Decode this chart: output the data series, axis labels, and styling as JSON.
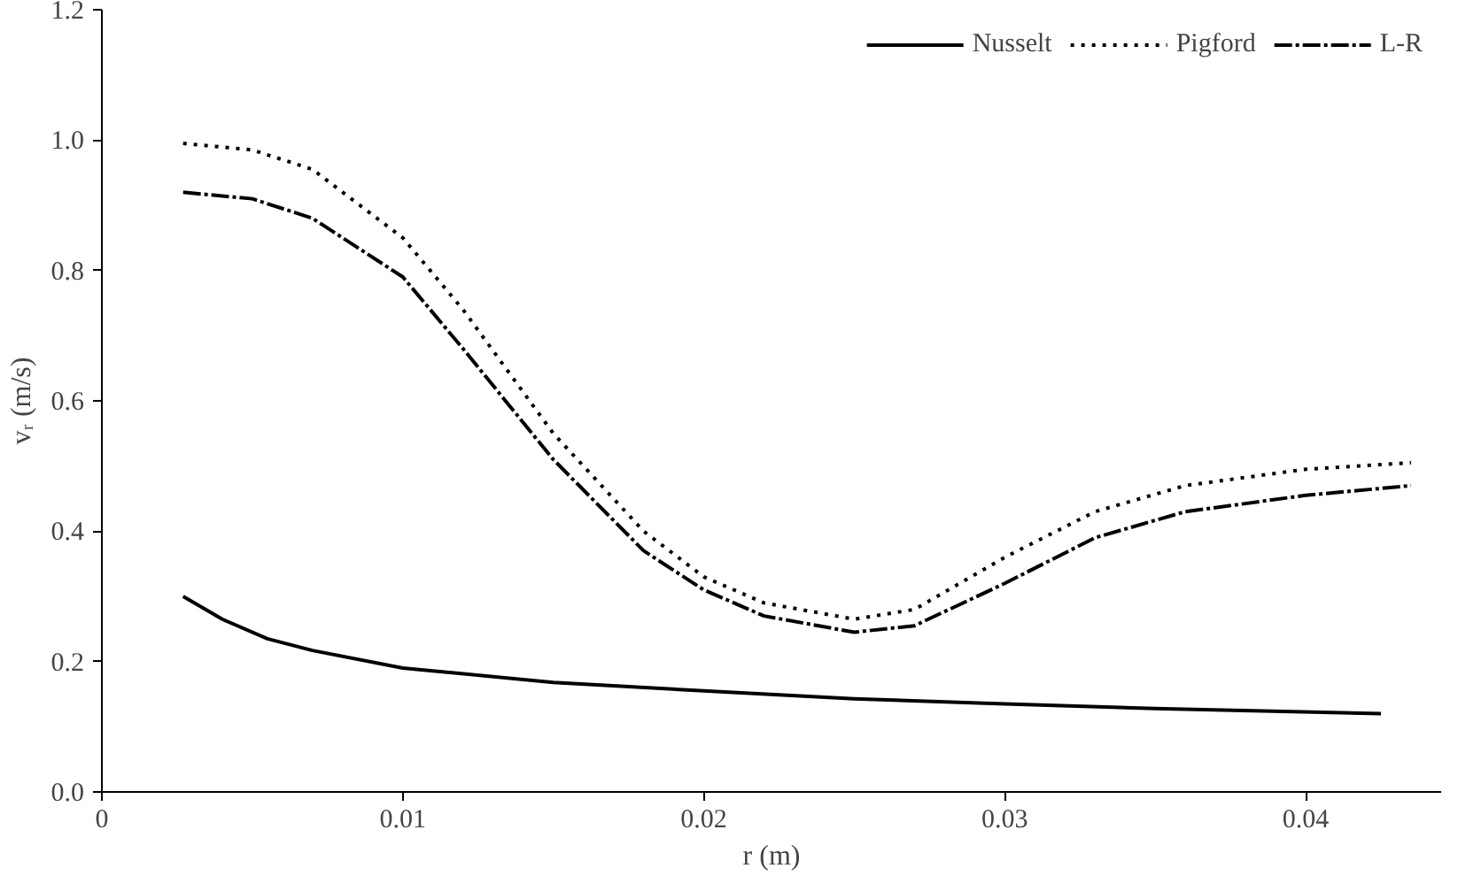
{
  "chart_data": {
    "type": "line",
    "xlabel": "r (m)",
    "ylabel": "vᵣ (m/s)",
    "xlim": [
      0,
      0.0445
    ],
    "ylim": [
      0,
      1.2
    ],
    "xticks": [
      0,
      0.01,
      0.02,
      0.03,
      0.04
    ],
    "yticks": [
      {
        "value": 0,
        "label": "0.0"
      },
      {
        "value": 0.2,
        "label": "0.2"
      },
      {
        "value": 0.4,
        "label": "0.4"
      },
      {
        "value": 0.6,
        "label": "0.6"
      },
      {
        "value": 0.8,
        "label": "0.8"
      },
      {
        "value": 1.0,
        "label": "1.0"
      },
      {
        "value": 1.2,
        "label": "1.2"
      }
    ],
    "grid": false,
    "legend": "top right",
    "marker": "none",
    "series": [
      {
        "name": "Nusselt",
        "color": "#000000",
        "line_style": "solid",
        "x": [
          0.0027,
          0.004,
          0.0055,
          0.007,
          0.01,
          0.015,
          0.02,
          0.025,
          0.03,
          0.035,
          0.0425
        ],
        "values": [
          0.3,
          0.265,
          0.235,
          0.217,
          0.19,
          0.168,
          0.155,
          0.143,
          0.135,
          0.128,
          0.12
        ]
      },
      {
        "name": "Pigford",
        "color": "#000000",
        "line_style": "dotted",
        "x": [
          0.0027,
          0.005,
          0.007,
          0.01,
          0.012,
          0.015,
          0.018,
          0.02,
          0.022,
          0.025,
          0.027,
          0.03,
          0.033,
          0.036,
          0.04,
          0.0435
        ],
        "values": [
          0.995,
          0.985,
          0.955,
          0.85,
          0.74,
          0.55,
          0.4,
          0.33,
          0.29,
          0.265,
          0.28,
          0.36,
          0.43,
          0.47,
          0.495,
          0.505
        ]
      },
      {
        "name": "L-R",
        "color": "#000000",
        "line_style": "dashdot",
        "x": [
          0.0027,
          0.005,
          0.007,
          0.01,
          0.012,
          0.015,
          0.018,
          0.02,
          0.022,
          0.025,
          0.027,
          0.03,
          0.033,
          0.036,
          0.04,
          0.0435
        ],
        "values": [
          0.92,
          0.91,
          0.88,
          0.79,
          0.68,
          0.51,
          0.37,
          0.31,
          0.27,
          0.245,
          0.255,
          0.32,
          0.39,
          0.43,
          0.455,
          0.47
        ]
      }
    ]
  }
}
